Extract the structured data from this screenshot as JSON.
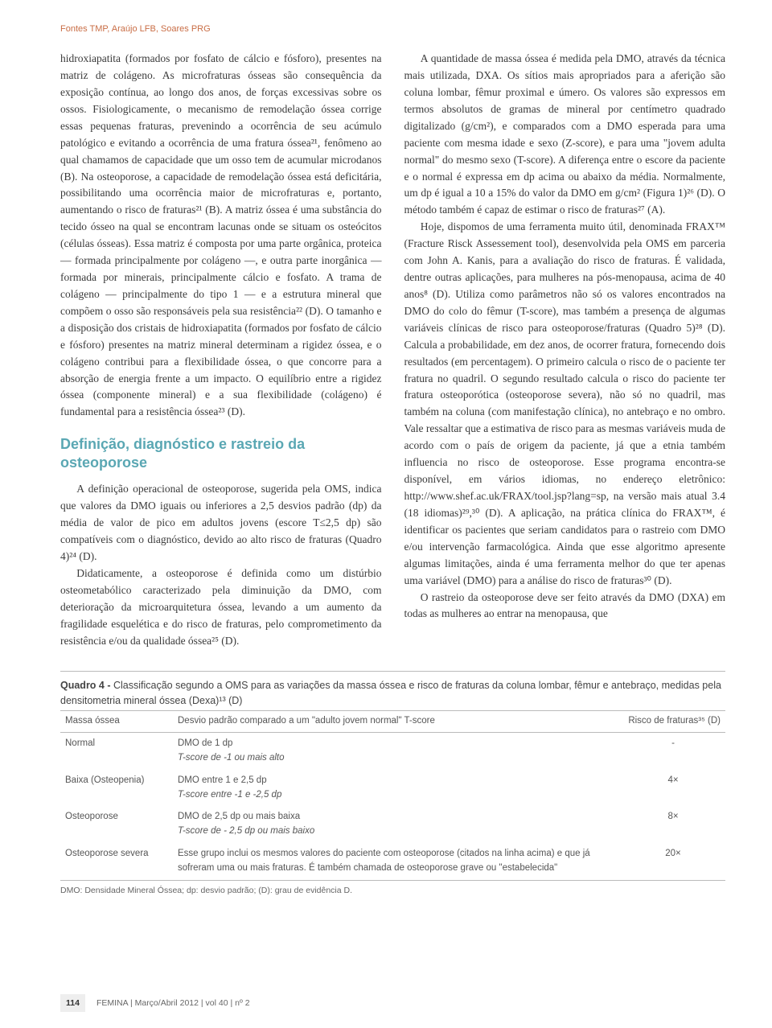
{
  "running_head": "Fontes TMP, Araújo LFB, Soares PRG",
  "col1": {
    "p1": "hidroxiapatita (formados por fosfato de cálcio e fósforo), presentes na matriz de colágeno. As microfraturas ósseas são consequência da exposição contínua, ao longo dos anos, de forças excessivas sobre os ossos. Fisiologicamente, o mecanismo de remodelação óssea corrige essas pequenas fraturas, prevenindo a ocorrência de seu acúmulo patológico e evitando a ocorrência de uma fratura óssea²¹, fenômeno ao qual chamamos de capacidade que um osso tem de acumular microdanos (B). Na osteoporose, a capacidade de remodelação óssea está deficitária, possibilitando uma ocorrência maior de microfraturas e, portanto, aumentando o risco de fraturas²¹ (B). A matriz óssea é uma substância do tecido ósseo na qual se encontram lacunas onde se situam os osteócitos (células ósseas). Essa matriz é composta por uma parte orgânica, proteica — formada principalmente por colágeno —, e outra parte inorgânica — formada por minerais, principalmente cálcio e fosfato. A trama de colágeno — principalmente do tipo 1 — e a estrutura mineral que compõem o osso são responsáveis pela sua resistência²² (D). O tamanho e a disposição dos cristais de hidroxiapatita (formados por fosfato de cálcio e fósforo) presentes na matriz mineral determinam a rigidez óssea, e o colágeno contribui para a flexibilidade óssea, o que concorre para a absorção de energia frente a um impacto. O equilíbrio entre a rigidez óssea (componente mineral) e a sua flexibilidade (colágeno) é fundamental para a resistência óssea²³ (D).",
    "heading": "Definição, diagnóstico e rastreio da osteoporose",
    "p2": "A definição operacional de osteoporose, sugerida pela OMS, indica que valores da DMO iguais ou inferiores a 2,5 desvios padrão (dp) da média de valor de pico em adultos jovens (escore T≤2,5 dp) são compatíveis com o diagnóstico, devido ao alto risco de fraturas (Quadro 4)²⁴ (D).",
    "p3": "Didaticamente, a osteoporose é definida como um distúrbio osteometabólico caracterizado pela diminuição da DMO, com deterioração da microarquitetura óssea, levando a um aumento da fragilidade esquelética e do risco de fraturas, pelo comprometimento da resistência e/ou da qualidade óssea²⁵ (D)."
  },
  "col2": {
    "p1": "A quantidade de massa óssea é medida pela DMO, através da técnica mais utilizada, DXA. Os sítios mais apropriados para a aferição são coluna lombar, fêmur proximal e úmero. Os valores são expressos em termos absolutos de gramas de mineral por centímetro quadrado digitalizado (g/cm²), e comparados com a DMO esperada para uma paciente com mesma idade e sexo (Z-score), e para uma \"jovem adulta normal\" do mesmo sexo (T-score). A diferença entre o escore da paciente e o normal é expressa em dp acima ou abaixo da média. Normalmente, um dp é igual a 10 a 15% do valor da DMO em g/cm² (Figura 1)²⁶ (D). O método também é capaz de estimar o risco de fraturas²⁷ (A).",
    "p2": "Hoje, dispomos de uma ferramenta muito útil, denominada FRAX™ (Fracture Risck Assessement tool), desenvolvida pela OMS em parceria com John A. Kanis, para a avaliação do risco de fraturas. É validada, dentre outras aplicações, para mulheres na pós-menopausa, acima de 40 anos⁸ (D). Utiliza como parâmetros não só os valores encontrados na DMO do colo do fêmur (T-score), mas também a presença de algumas variáveis clínicas de risco para osteoporose/fraturas (Quadro 5)²⁸ (D). Calcula a probabilidade, em dez anos, de ocorrer fratura, fornecendo dois resultados (em percentagem). O primeiro calcula o risco de o paciente ter fratura no quadril. O segundo resultado calcula o risco do paciente ter fratura osteoporótica (osteoporose severa), não só no quadril, mas também na coluna (com manifestação clínica), no antebraço e no ombro. Vale ressaltar que a estimativa de risco para as mesmas variáveis muda de acordo com o país de origem da paciente, já que a etnia também influencia no risco de osteoporose. Esse programa encontra-se disponível, em vários idiomas, no endereço eletrônico: http://www.shef.ac.uk/FRAX/tool.jsp?lang=sp, na versão mais atual 3.4 (18 idiomas)²⁹,³⁰ (D). A aplicação, na prática clínica do FRAX™, é identificar os pacientes que seriam candidatos para o rastreio com DMO e/ou intervenção farmacológica. Ainda que esse algoritmo apresente algumas limitações, ainda é uma ferramenta melhor do que ter apenas uma variável (DMO) para a análise do risco de fraturas³⁰ (D).",
    "p3": "O rastreio da osteoporose deve ser feito através da DMO (DXA) em todas as mulheres ao entrar na menopausa, que"
  },
  "quadro": {
    "title_bold": "Quadro 4 - ",
    "title_rest": "Classificação segundo a OMS para as variações da massa óssea e risco de fraturas da coluna lombar, fêmur e antebraço, medidas pela densitometria mineral óssea (Dexa)¹³ (D)",
    "headers": {
      "c1": "Massa óssea",
      "c2": "Desvio padrão comparado a um \"adulto jovem normal\" T-score",
      "c3": "Risco de fraturas³⁵ (D)"
    },
    "rows": [
      {
        "cat": "Normal",
        "desc1": "DMO de 1 dp",
        "desc2": "T-score de -1 ou mais alto",
        "risk": "-"
      },
      {
        "cat": "Baixa (Osteopenia)",
        "desc1": "DMO entre 1 e 2,5 dp",
        "desc2": "T-score entre -1 e -2,5 dp",
        "risk": "4×"
      },
      {
        "cat": "Osteoporose",
        "desc1": "DMO de 2,5 dp ou mais baixa",
        "desc2": "T-score de - 2,5 dp ou mais baixo",
        "risk": "8×"
      },
      {
        "cat": "Osteoporose severa",
        "desc1": "Esse grupo inclui os mesmos valores do paciente com osteoporose (citados na linha acima) e que já sofreram uma ou mais fraturas. É também chamada de osteoporose grave ou \"estabelecida\"",
        "desc2": "",
        "risk": "20×"
      }
    ],
    "footnote": "DMO: Densidade Mineral Óssea; dp: desvio padrão; (D): grau de evidência D."
  },
  "footer": {
    "page": "114",
    "citation": "FEMINA | Março/Abril 2012 | vol 40 | nº 2"
  }
}
